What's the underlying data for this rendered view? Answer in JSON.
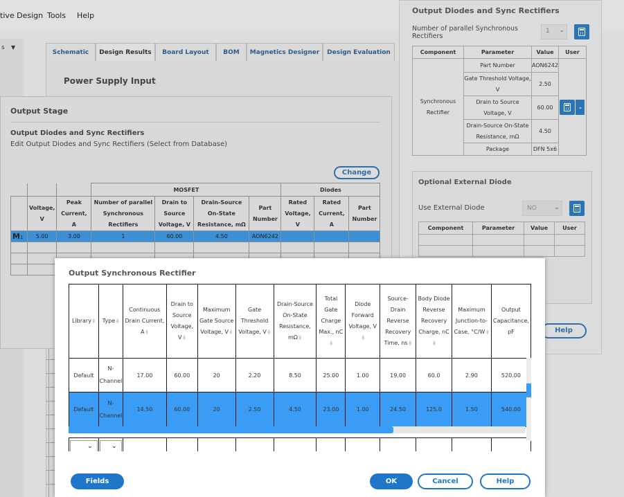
{
  "menubar": {
    "items": [
      "tive Design",
      "Tools",
      "Help"
    ]
  },
  "left_select": {
    "value": "s"
  },
  "tabs": [
    "Schematic",
    "Design Results",
    "Board Layout",
    "BOM",
    "Magnetics Designer",
    "Design Evaluation"
  ],
  "power_supply_input": {
    "title": "Power Supply Input"
  },
  "output_stage": {
    "title": "Output Stage",
    "subtitle": "Output Diodes and Sync Rectifiers",
    "description": "Edit Output Diodes and Sync Rectifiers (Select from Database)",
    "change_label": "Change",
    "group_mosfet": "MOSFET",
    "group_diodes": "Diodes",
    "headers": [
      "Voltage, V",
      "Peak Current, A",
      "Number of parallel Synchronous Rectifiers",
      "Drain to Source Voltage, V",
      "Drain-Source On-State Resistance, mΩ",
      "Part Number",
      "Rated Voltage, V",
      "Rated Current, A",
      "Part Number"
    ],
    "row_marker": "M",
    "row_index": "1",
    "row": [
      "5.00",
      "3.00",
      "1",
      "60.00",
      "4.50",
      "AON6242",
      "",
      "",
      ""
    ]
  },
  "right_dialog": {
    "title": "Output Diodes and Sync Rectifiers",
    "parallel_label": "Number of parallel Synchronous Rectifiers",
    "parallel_value": "1",
    "headers": [
      "Component",
      "Parameter",
      "Value",
      "User"
    ],
    "component": "Synchronous Rectifier",
    "params": [
      {
        "name": "Part Number",
        "value": "AON6242"
      },
      {
        "name": "Gate Threshold Voltage, V",
        "value": "2.50"
      },
      {
        "name": "Drain to Source Voltage, V",
        "value": "60.00"
      },
      {
        "name": "Drain-Source On-State Resistance, mΩ",
        "value": "4.50"
      },
      {
        "name": "Package",
        "value": "DFN 5x6"
      }
    ],
    "ext_title": "Optional External Diode",
    "ext_label": "Use External Diode",
    "ext_value": "NO",
    "ext_headers": [
      "Component",
      "Parameter",
      "Value",
      "User"
    ],
    "help_label": "Help"
  },
  "modal": {
    "title": "Output Synchronous Rectifier",
    "headers": [
      "Library",
      "Type",
      "Continuous Drain Current, A",
      "Drain to Source Voltage, V",
      "Maximum Gate Source Voltage, V",
      "Gate Threshold Voltage, V",
      "Drain-Source On-State Resistance, mΩ",
      "Total Gate Charge Max., nC",
      "Diode Forward Voltage, V",
      "Source-Drain Reverse Recovery Time, ns",
      "Body Diode Reverse Recovery Charge, nC",
      "Maximum Junction-to-Case, °C/W",
      "Output Capacitance, pF"
    ],
    "rows": [
      [
        "Default",
        "N-Channel",
        "17.00",
        "60.00",
        "20",
        "2.20",
        "8.50",
        "25.00",
        "1.00",
        "19.00",
        "60.0",
        "2.90",
        "520.00"
      ],
      [
        "Default",
        "N-Channel",
        "14.50",
        "60.00",
        "20",
        "2.50",
        "4.50",
        "23.00",
        "1.00",
        "24.50",
        "125.0",
        "1.50",
        "540.00"
      ]
    ],
    "buttons": {
      "fields": "Fields",
      "ok": "OK",
      "cancel": "Cancel",
      "help": "Help"
    }
  }
}
